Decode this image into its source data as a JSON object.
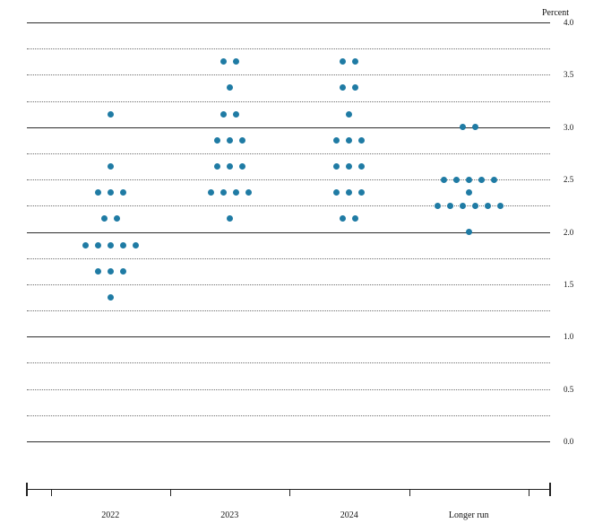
{
  "chart_data": {
    "type": "scatter",
    "subtype": "fomc-dot-plot",
    "unit_label": "Percent",
    "ylim": [
      0.0,
      4.0
    ],
    "gridline_interval": 0.25,
    "ytick_interval": 0.5,
    "ytick_labels": [
      "4.0",
      "3.5",
      "3.0",
      "2.5",
      "2.0",
      "1.5",
      "1.0",
      "0.5",
      "0.0"
    ],
    "grid_on": true,
    "legend": "none",
    "categories": [
      "2022",
      "2023",
      "2024",
      "Longer run"
    ],
    "series": [
      {
        "category": "2022",
        "dots": [
          {
            "value": 3.125,
            "count": 1
          },
          {
            "value": 2.625,
            "count": 1
          },
          {
            "value": 2.375,
            "count": 3
          },
          {
            "value": 2.125,
            "count": 2
          },
          {
            "value": 1.875,
            "count": 5
          },
          {
            "value": 1.625,
            "count": 3
          },
          {
            "value": 1.375,
            "count": 1
          }
        ]
      },
      {
        "category": "2023",
        "dots": [
          {
            "value": 3.625,
            "count": 2
          },
          {
            "value": 3.375,
            "count": 1
          },
          {
            "value": 3.125,
            "count": 2
          },
          {
            "value": 2.875,
            "count": 3
          },
          {
            "value": 2.625,
            "count": 3
          },
          {
            "value": 2.375,
            "count": 4
          },
          {
            "value": 2.125,
            "count": 1
          }
        ]
      },
      {
        "category": "2024",
        "dots": [
          {
            "value": 3.625,
            "count": 2
          },
          {
            "value": 3.375,
            "count": 2
          },
          {
            "value": 3.125,
            "count": 1
          },
          {
            "value": 2.875,
            "count": 3
          },
          {
            "value": 2.625,
            "count": 3
          },
          {
            "value": 2.375,
            "count": 3
          },
          {
            "value": 2.125,
            "count": 2
          }
        ]
      },
      {
        "category": "Longer run",
        "dots": [
          {
            "value": 3.0,
            "count": 2
          },
          {
            "value": 2.5,
            "count": 5
          },
          {
            "value": 2.375,
            "count": 1
          },
          {
            "value": 2.25,
            "count": 6
          },
          {
            "value": 2.0,
            "count": 1
          }
        ]
      }
    ],
    "dot_color": "#1f7ba4",
    "solid_gridline_color": "#2b2b2b",
    "dotted_gridline_color": "#6e6e6e"
  }
}
